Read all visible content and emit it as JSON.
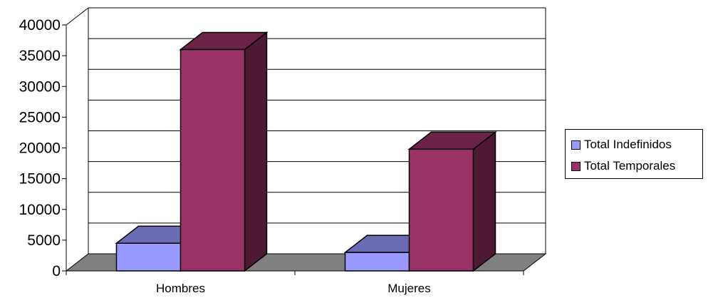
{
  "chart_data": {
    "type": "bar",
    "style": "3d-clustered-column",
    "categories": [
      "Hombres",
      "Mujeres"
    ],
    "series": [
      {
        "name": "Total Indefinidos",
        "values": [
          4500,
          3000
        ],
        "color": "#9999FF",
        "top_color": "#6B6BB3",
        "side_color": "#4D4D80"
      },
      {
        "name": "Total Temporales",
        "values": [
          36000,
          19800
        ],
        "color": "#993366",
        "top_color": "#6B2347",
        "side_color": "#4D1933"
      }
    ],
    "ylim": [
      0,
      40000
    ],
    "yticks": [
      "0",
      "5000",
      "10000",
      "15000",
      "20000",
      "25000",
      "30000",
      "35000",
      "40000"
    ],
    "grid": true,
    "floor_color": "#808080",
    "legend_position": "right"
  }
}
